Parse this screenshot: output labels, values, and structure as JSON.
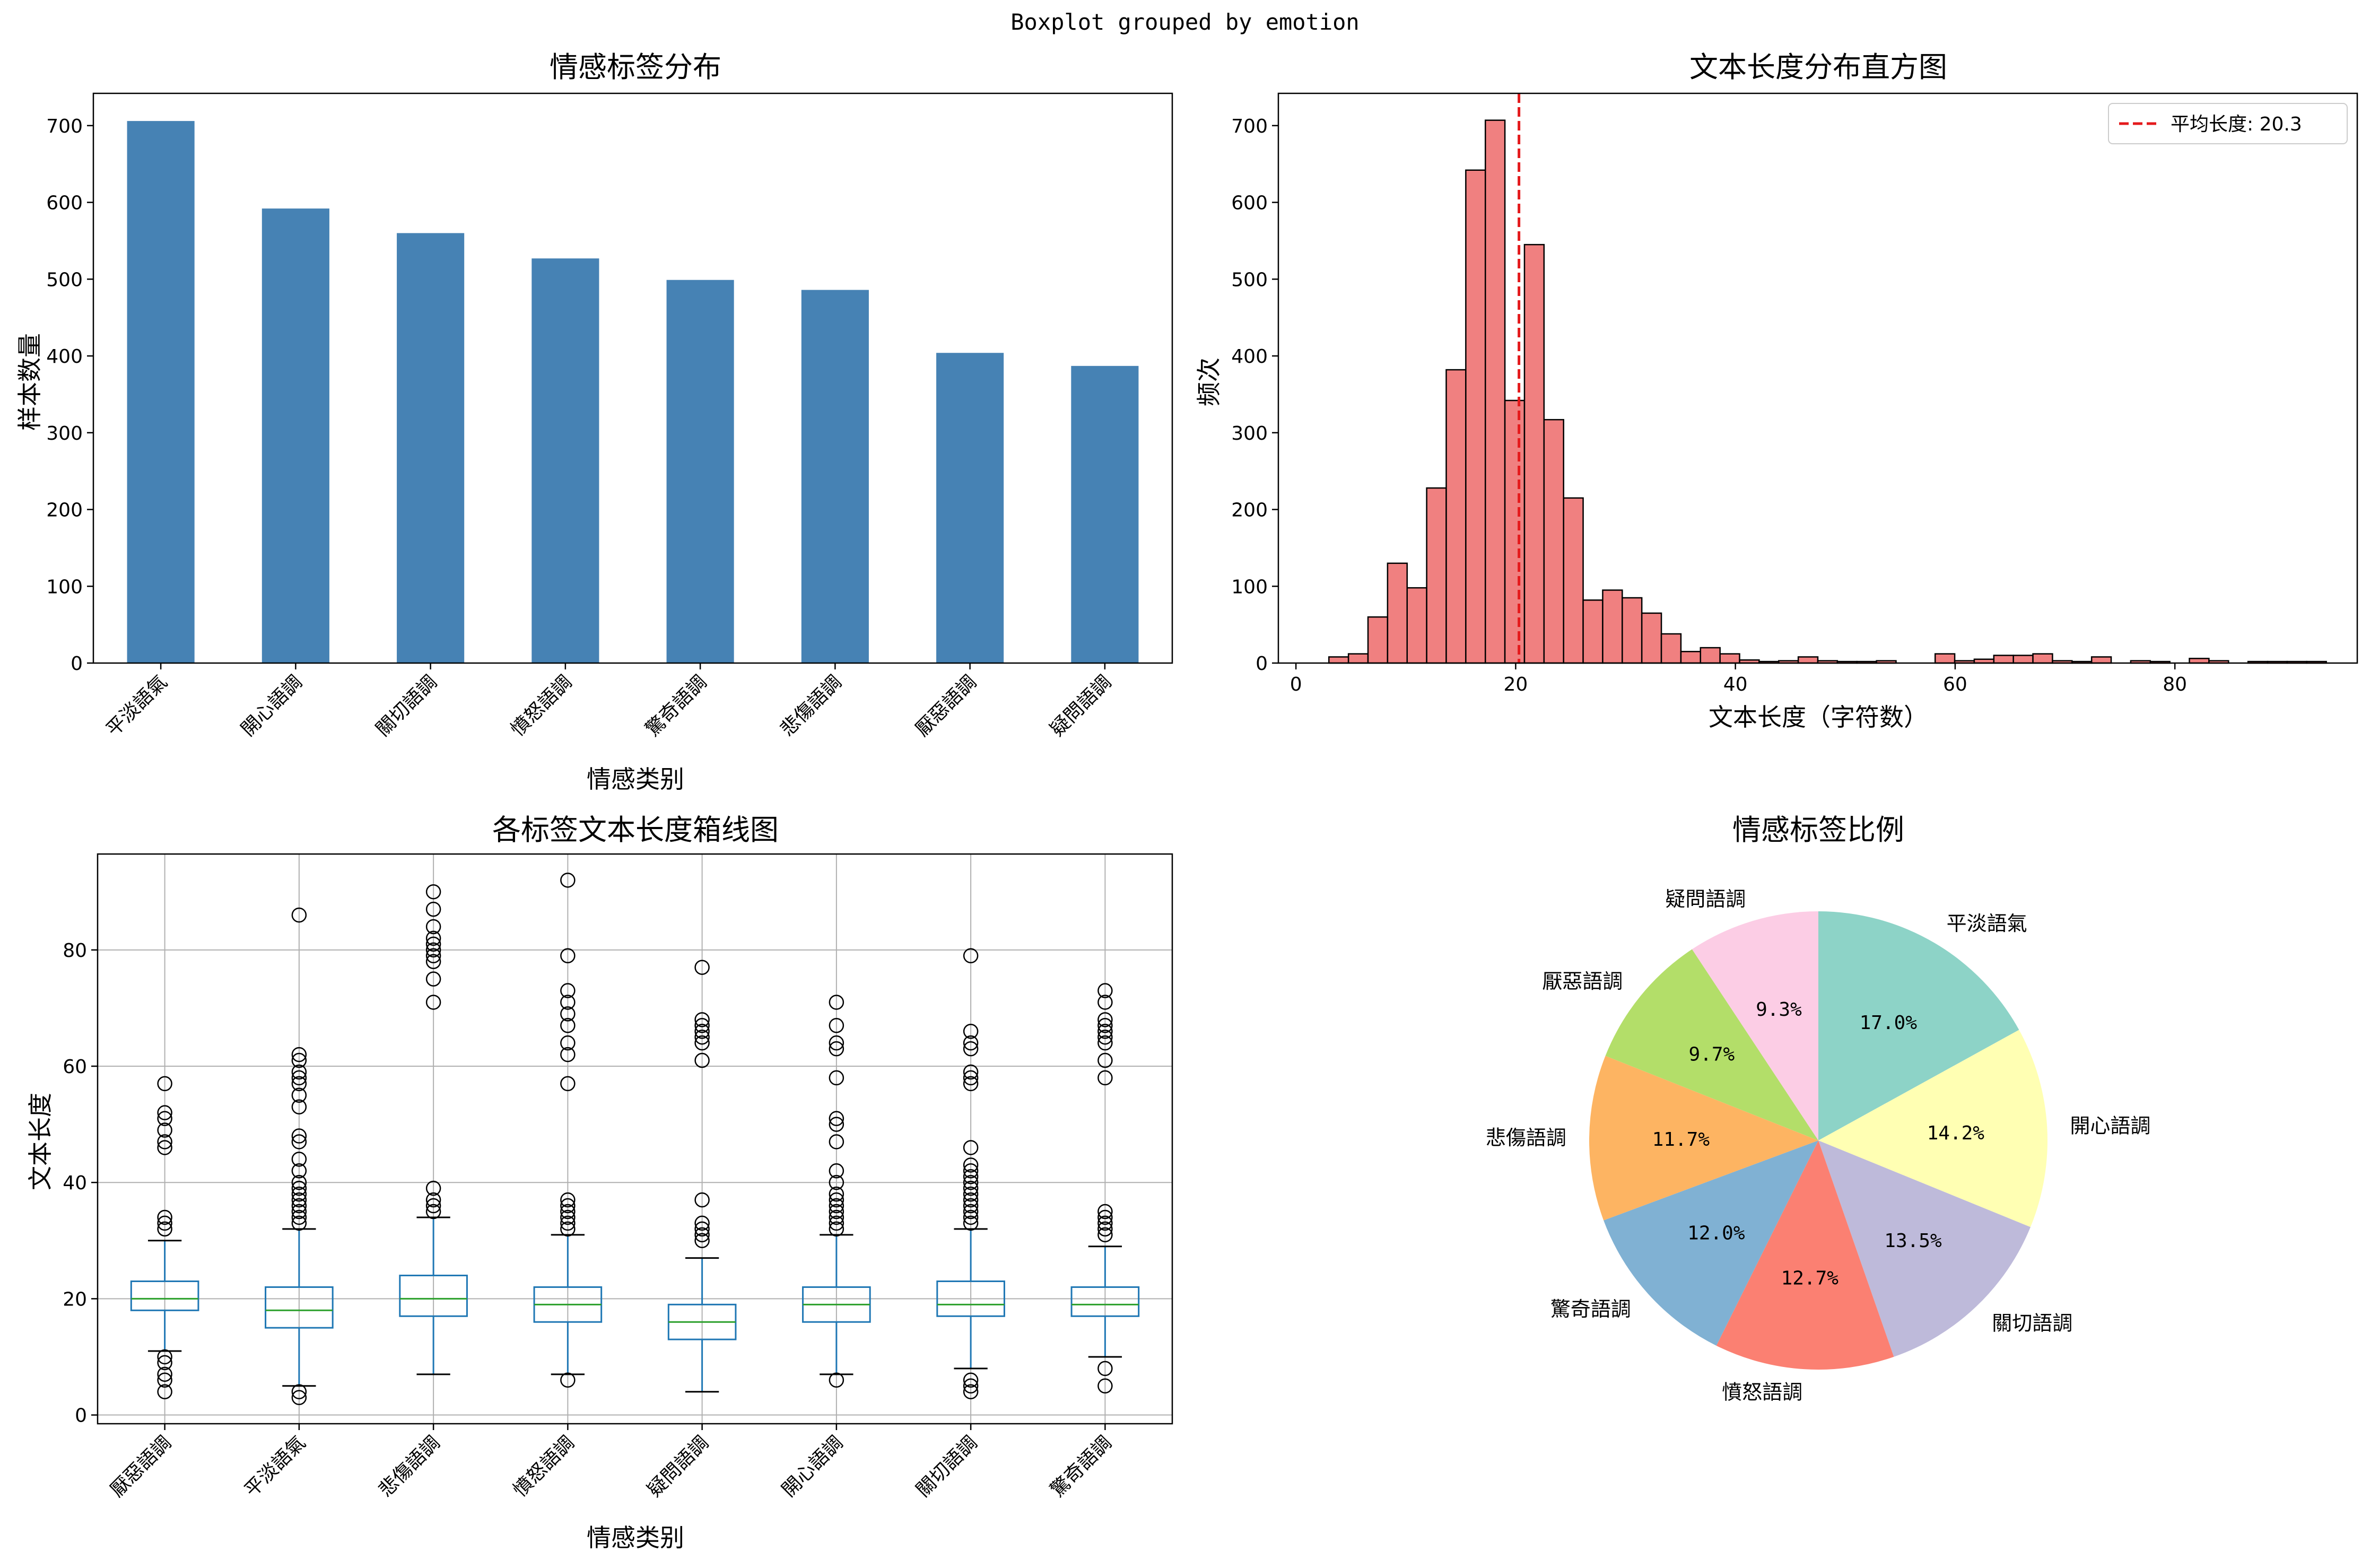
{
  "suptitle": "Boxplot grouped by emotion",
  "colors": {
    "bar": "#4682b4",
    "hist_fill": "#f08080",
    "hist_edge": "#000000",
    "mean_line": "#e41a1c",
    "box": "#1f77b4",
    "median": "#2ca02c",
    "grid": "#b0b0b0"
  },
  "chart_data": [
    {
      "type": "bar",
      "title": "情感标签分布",
      "xlabel": "情感类别",
      "ylabel": "样本数量",
      "categories": [
        "平淡語氣",
        "開心語調",
        "關切語調",
        "憤怒語調",
        "驚奇語調",
        "悲傷語調",
        "厭惡語調",
        "疑問語調"
      ],
      "values": [
        706,
        592,
        560,
        527,
        499,
        486,
        404,
        387
      ],
      "ylim": [
        0,
        742
      ],
      "yticks": [
        0,
        100,
        200,
        300,
        400,
        500,
        600,
        700
      ],
      "grid": false
    },
    {
      "type": "bar",
      "subtype": "histogram",
      "title": "文本长度分布直方图",
      "xlabel": "文本长度（字符数）",
      "ylabel": "频次",
      "xlim": [
        -1.6,
        96.6
      ],
      "ylim": [
        0,
        742
      ],
      "xticks": [
        0,
        20,
        40,
        60,
        80
      ],
      "yticks": [
        0,
        100,
        200,
        300,
        400,
        500,
        600,
        700
      ],
      "bin_start": 3,
      "bin_width": 1.78,
      "counts": [
        8,
        12,
        60,
        130,
        98,
        228,
        382,
        642,
        707,
        342,
        545,
        317,
        215,
        82,
        95,
        85,
        65,
        38,
        15,
        20,
        12,
        4,
        2,
        3,
        8,
        3,
        2,
        2,
        3,
        0,
        0,
        12,
        3,
        5,
        10,
        10,
        12,
        3,
        2,
        8,
        0,
        3,
        2,
        0,
        6,
        3,
        0,
        2,
        2,
        2,
        2
      ],
      "mean_line": {
        "x": 20.3,
        "label": "平均长度: 20.3"
      },
      "legend": "top-right",
      "grid": false
    },
    {
      "type": "boxplot",
      "title": "各标签文本长度箱线图",
      "xlabel": "情感类别",
      "ylabel": "文本长度",
      "ylim": [
        -1.5,
        96.5
      ],
      "yticks": [
        0,
        20,
        40,
        60,
        80
      ],
      "grid": true,
      "categories": [
        "厭惡語調",
        "平淡語氣",
        "悲傷語調",
        "憤怒語調",
        "疑問語調",
        "開心語調",
        "關切語調",
        "驚奇語調"
      ],
      "boxes": [
        {
          "whislo": 11,
          "q1": 18,
          "med": 20,
          "q3": 23,
          "whishi": 30,
          "fliers": [
            57,
            52,
            51,
            49,
            47,
            46,
            34,
            33,
            32,
            10,
            9,
            7,
            6,
            4
          ]
        },
        {
          "whislo": 5,
          "q1": 15,
          "med": 18,
          "q3": 22,
          "whishi": 32,
          "fliers": [
            86,
            62,
            61,
            59,
            58,
            57,
            55,
            53,
            48,
            47,
            44,
            42,
            40,
            39,
            38,
            37,
            36,
            35,
            34,
            33,
            4,
            3
          ]
        },
        {
          "whislo": 7,
          "q1": 17,
          "med": 20,
          "q3": 24,
          "whishi": 34,
          "fliers": [
            90,
            87,
            84,
            82,
            81,
            80,
            79,
            78,
            75,
            71,
            39,
            37,
            36,
            35
          ]
        },
        {
          "whislo": 7,
          "q1": 16,
          "med": 19,
          "q3": 22,
          "whishi": 31,
          "fliers": [
            92,
            79,
            73,
            71,
            69,
            67,
            64,
            62,
            57,
            37,
            36,
            35,
            34,
            33,
            32,
            6
          ]
        },
        {
          "whislo": 4,
          "q1": 13,
          "med": 16,
          "q3": 19,
          "whishi": 27,
          "fliers": [
            77,
            68,
            67,
            66,
            65,
            64,
            61,
            37,
            33,
            32,
            31,
            30
          ]
        },
        {
          "whislo": 7,
          "q1": 16,
          "med": 19,
          "q3": 22,
          "whishi": 31,
          "fliers": [
            71,
            67,
            64,
            63,
            58,
            51,
            50,
            47,
            42,
            40,
            38,
            37,
            36,
            35,
            34,
            33,
            32,
            6
          ]
        },
        {
          "whislo": 8,
          "q1": 17,
          "med": 19,
          "q3": 23,
          "whishi": 32,
          "fliers": [
            79,
            66,
            64,
            63,
            59,
            58,
            57,
            46,
            43,
            42,
            41,
            40,
            39,
            38,
            37,
            36,
            35,
            34,
            33,
            6,
            5,
            4
          ]
        },
        {
          "whislo": 10,
          "q1": 17,
          "med": 19,
          "q3": 22,
          "whishi": 29,
          "fliers": [
            73,
            71,
            68,
            67,
            66,
            65,
            64,
            61,
            58,
            35,
            34,
            33,
            32,
            31,
            8,
            5
          ]
        }
      ]
    },
    {
      "type": "pie",
      "title": "情感标签比例",
      "startangle": 90,
      "counterclock": false,
      "labels": [
        "平淡語氣",
        "開心語調",
        "關切語調",
        "憤怒語調",
        "驚奇語調",
        "悲傷語調",
        "厭惡語調",
        "疑問語調"
      ],
      "values": [
        17.0,
        14.2,
        13.5,
        12.7,
        12.0,
        11.7,
        9.7,
        9.3
      ],
      "autopct_labels": [
        "17.0%",
        "14.2%",
        "13.5%",
        "12.7%",
        "12.0%",
        "11.7%",
        "9.7%",
        "9.3%"
      ],
      "colors": [
        "#8dd3c7",
        "#ffffb3",
        "#bebada",
        "#fb8072",
        "#80b1d3",
        "#fdb462",
        "#b3de69",
        "#fccde5"
      ]
    }
  ]
}
